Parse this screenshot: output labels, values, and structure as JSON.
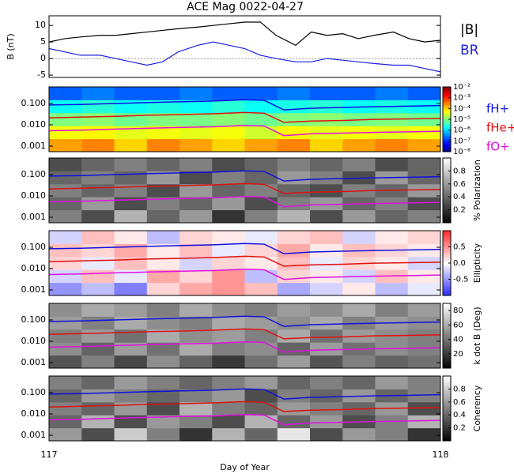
{
  "chart_data": [
    {
      "type": "line",
      "title": "ACE Mag 0022-04-27",
      "y_label": "B (nT)",
      "x": [
        117,
        117.04,
        117.08,
        117.13,
        117.17,
        117.21,
        117.25,
        117.29,
        117.33,
        117.38,
        117.42,
        117.46,
        117.5,
        117.54,
        117.58,
        117.63,
        117.67,
        117.71,
        117.75,
        117.79,
        117.83,
        117.88,
        117.92,
        117.96,
        118
      ],
      "series": [
        {
          "name": "|B|",
          "color": "#000000",
          "values": [
            5,
            6,
            6.5,
            7,
            7,
            7.5,
            8,
            8.5,
            9,
            9.5,
            10,
            10.5,
            11,
            11,
            7,
            4,
            8,
            7,
            7.5,
            6,
            7,
            8,
            6,
            5,
            5.5
          ]
        },
        {
          "name": "BR",
          "color": "#1f1fe0",
          "values": [
            3,
            2,
            1,
            1,
            0,
            -1,
            -2,
            -1,
            2,
            4,
            5,
            4,
            3,
            1,
            0,
            -1,
            -1,
            0,
            -0.5,
            -1,
            -1.5,
            -2,
            -2,
            -3,
            -4
          ]
        }
      ],
      "xlim": [
        117,
        118
      ],
      "ylim": [
        -5.7,
        12.9
      ],
      "yticks": [
        -5,
        0,
        5,
        10
      ]
    },
    {
      "type": "heatmap",
      "colormap": "jet",
      "cscale": "log",
      "yscale": "log",
      "clim": [
        1e-08,
        0.01
      ],
      "cticks": [
        {
          "value": 0.01,
          "label": "10⁻²"
        },
        {
          "value": 0.001,
          "label": "10⁻³"
        },
        {
          "value": 0.0001,
          "label": "10⁻⁴"
        },
        {
          "value": 1e-05,
          "label": "10⁻⁵"
        },
        {
          "value": 1e-06,
          "label": "10⁻⁶"
        },
        {
          "value": 1e-07,
          "label": "10⁻⁷"
        },
        {
          "value": 1e-08,
          "label": "10⁻⁸"
        }
      ],
      "xlim": [
        117,
        118
      ],
      "ylim": [
        0.00055,
        0.6
      ],
      "yticks": [
        {
          "value": 0.001,
          "label": "0.001"
        },
        {
          "value": 0.01,
          "label": "0.010"
        },
        {
          "value": 0.1,
          "label": "0.100"
        }
      ],
      "z": [
        [
          0.0002,
          0.0003,
          0.0001,
          0.0003,
          0.0002,
          0.0001,
          0.0002,
          0.0003,
          0.0001,
          0.0002,
          0.0003,
          0.0002
        ],
        [
          5e-05,
          6e-05,
          4e-05,
          5e-05,
          4e-05,
          5e-05,
          3e-05,
          6e-05,
          4e-05,
          5e-05,
          4e-05,
          5e-05
        ],
        [
          1e-05,
          1.2e-05,
          8e-06,
          1e-05,
          9e-06,
          1.1e-05,
          8e-06,
          1e-05,
          1.2e-05,
          9e-06,
          1e-05,
          8e-06
        ],
        [
          2e-06,
          3e-06,
          2e-06,
          2.5e-06,
          2e-06,
          3e-06,
          2e-06,
          2.5e-06,
          3e-06,
          2e-06,
          2.5e-06,
          2e-06
        ],
        [
          2e-07,
          3e-07,
          2e-07,
          2e-07,
          3e-07,
          2e-07,
          2e-07,
          3e-07,
          2e-07,
          2e-07,
          3e-07,
          2e-07
        ]
      ],
      "line_x": [
        117,
        117.08,
        117.17,
        117.25,
        117.33,
        117.42,
        117.5,
        117.55,
        117.6,
        117.67,
        117.75,
        117.83,
        117.92,
        118
      ],
      "series": [
        {
          "name": "fH+",
          "color": "#1010e0",
          "values": [
            0.085,
            0.09,
            0.1,
            0.11,
            0.12,
            0.13,
            0.15,
            0.14,
            0.05,
            0.06,
            0.065,
            0.07,
            0.075,
            0.08
          ]
        },
        {
          "name": "fHe+",
          "color": "#e01010",
          "values": [
            0.021,
            0.023,
            0.025,
            0.028,
            0.03,
            0.033,
            0.038,
            0.035,
            0.013,
            0.015,
            0.016,
            0.018,
            0.019,
            0.02
          ]
        },
        {
          "name": "fO+",
          "color": "#e010e0",
          "values": [
            0.0053,
            0.0056,
            0.0063,
            0.0069,
            0.0075,
            0.0081,
            0.0094,
            0.0088,
            0.0031,
            0.0038,
            0.0041,
            0.0044,
            0.0047,
            0.005
          ]
        }
      ]
    },
    {
      "type": "heatmap",
      "colormap": "gray",
      "yscale": "log",
      "c_label": "% Polarization",
      "clim": [
        0,
        1
      ],
      "cticks": [
        0.2,
        0.4,
        0.6,
        0.8
      ],
      "xlim": [
        117,
        118
      ],
      "ylim": [
        0.00055,
        0.6
      ],
      "yticks": [
        {
          "value": 0.001,
          "label": "0.001"
        },
        {
          "value": 0.01,
          "label": "0.010"
        },
        {
          "value": 0.1,
          "label": "0.100"
        }
      ],
      "z": [
        [
          0.5,
          0.3,
          0.7,
          0.4,
          0.6,
          0.2,
          0.5,
          0.7,
          0.3,
          0.6,
          0.4,
          0.5
        ],
        [
          0.4,
          0.6,
          0.3,
          0.5,
          0.4,
          0.6,
          0.3,
          0.5,
          0.6,
          0.4,
          0.5,
          0.3
        ],
        [
          0.5,
          0.4,
          0.5,
          0.3,
          0.6,
          0.4,
          0.5,
          0.4,
          0.3,
          0.5,
          0.4,
          0.6
        ],
        [
          0.4,
          0.5,
          0.4,
          0.6,
          0.3,
          0.5,
          0.4,
          0.6,
          0.5,
          0.3,
          0.6,
          0.4
        ],
        [
          0.3,
          0.4,
          0.5,
          0.4,
          0.5,
          0.3,
          0.4,
          0.5,
          0.4,
          0.5,
          0.3,
          0.4
        ]
      ],
      "line_x": [
        117,
        117.08,
        117.17,
        117.25,
        117.33,
        117.42,
        117.5,
        117.55,
        117.6,
        117.67,
        117.75,
        117.83,
        117.92,
        118
      ],
      "series": [
        {
          "color": "#1010e0",
          "values": [
            0.085,
            0.09,
            0.1,
            0.11,
            0.12,
            0.13,
            0.15,
            0.14,
            0.05,
            0.06,
            0.065,
            0.07,
            0.075,
            0.08
          ]
        },
        {
          "color": "#e01010",
          "values": [
            0.021,
            0.023,
            0.025,
            0.028,
            0.03,
            0.033,
            0.038,
            0.035,
            0.013,
            0.015,
            0.016,
            0.018,
            0.019,
            0.02
          ]
        },
        {
          "color": "#e010e0",
          "values": [
            0.0053,
            0.0056,
            0.0063,
            0.0069,
            0.0075,
            0.0081,
            0.0094,
            0.0088,
            0.0031,
            0.0038,
            0.0041,
            0.0044,
            0.0047,
            0.005
          ]
        }
      ]
    },
    {
      "type": "heatmap",
      "colormap": "bwr",
      "yscale": "log",
      "c_label": "Ellipticity",
      "clim": [
        -1,
        1
      ],
      "cticks": [
        -0.5,
        {
          "value": 0,
          "label": "0.0"
        },
        0.5
      ],
      "xlim": [
        117,
        118
      ],
      "ylim": [
        0.00055,
        0.6
      ],
      "yticks": [
        {
          "value": 0.001,
          "label": "0.001"
        },
        {
          "value": 0.01,
          "label": "0.010"
        },
        {
          "value": 0.1,
          "label": "0.100"
        }
      ],
      "z": [
        [
          -0.5,
          -0.3,
          -0.6,
          0.2,
          0.4,
          0.5,
          0.3,
          -0.4,
          -0.2,
          0.1,
          -0.3,
          -0.1
        ],
        [
          -0.2,
          0.3,
          -0.1,
          0.4,
          0.2,
          0.5,
          -0.3,
          0.2,
          0.1,
          -0.2,
          0.3,
          0.1
        ],
        [
          0.2,
          -0.1,
          0.3,
          0.1,
          -0.2,
          0.2,
          0.1,
          0.3,
          -0.1,
          0.2,
          0.1,
          -0.2
        ],
        [
          0.3,
          0.2,
          0.4,
          0.1,
          0.3,
          -0.1,
          0.2,
          0.4,
          0.1,
          0.3,
          0.2,
          0.1
        ],
        [
          -0.2,
          0.3,
          0.1,
          -0.3,
          0.2,
          0.1,
          -0.1,
          0.2,
          0.3,
          -0.2,
          0.1,
          0.2
        ]
      ],
      "line_x": [
        117,
        117.08,
        117.17,
        117.25,
        117.33,
        117.42,
        117.5,
        117.55,
        117.6,
        117.67,
        117.75,
        117.83,
        117.92,
        118
      ],
      "series": [
        {
          "color": "#1010e0",
          "values": [
            0.085,
            0.09,
            0.1,
            0.11,
            0.12,
            0.13,
            0.15,
            0.14,
            0.05,
            0.06,
            0.065,
            0.07,
            0.075,
            0.08
          ]
        },
        {
          "color": "#e01010",
          "values": [
            0.021,
            0.023,
            0.025,
            0.028,
            0.03,
            0.033,
            0.038,
            0.035,
            0.013,
            0.015,
            0.016,
            0.018,
            0.019,
            0.02
          ]
        },
        {
          "color": "#e010e0",
          "values": [
            0.0053,
            0.0056,
            0.0063,
            0.0069,
            0.0075,
            0.0081,
            0.0094,
            0.0088,
            0.0031,
            0.0038,
            0.0041,
            0.0044,
            0.0047,
            0.005
          ]
        }
      ]
    },
    {
      "type": "heatmap",
      "colormap": "gray",
      "yscale": "log",
      "c_label": "k dot B (Deg)",
      "clim": [
        0,
        90
      ],
      "cticks": [
        20,
        40,
        60,
        80
      ],
      "xlim": [
        117,
        118
      ],
      "ylim": [
        0.00055,
        0.6
      ],
      "yticks": [
        {
          "value": 0.001,
          "label": "0.001"
        },
        {
          "value": 0.01,
          "label": "0.010"
        },
        {
          "value": 0.1,
          "label": "0.100"
        }
      ],
      "z": [
        [
          30,
          45,
          25,
          50,
          35,
          20,
          40,
          55,
          30,
          45,
          35,
          40
        ],
        [
          50,
          35,
          55,
          40,
          60,
          45,
          50,
          35,
          55,
          40,
          50,
          45
        ],
        [
          45,
          55,
          40,
          60,
          50,
          55,
          45,
          60,
          40,
          55,
          50,
          45
        ],
        [
          55,
          45,
          60,
          50,
          45,
          60,
          55,
          50,
          60,
          45,
          55,
          50
        ],
        [
          50,
          60,
          55,
          45,
          60,
          50,
          45,
          55,
          50,
          60,
          45,
          55
        ]
      ],
      "line_x": [
        117,
        117.08,
        117.17,
        117.25,
        117.33,
        117.42,
        117.5,
        117.55,
        117.6,
        117.67,
        117.75,
        117.83,
        117.92,
        118
      ],
      "series": [
        {
          "color": "#1010e0",
          "values": [
            0.085,
            0.09,
            0.1,
            0.11,
            0.12,
            0.13,
            0.15,
            0.14,
            0.05,
            0.06,
            0.065,
            0.07,
            0.075,
            0.08
          ]
        },
        {
          "color": "#e01010",
          "values": [
            0.021,
            0.023,
            0.025,
            0.028,
            0.03,
            0.033,
            0.038,
            0.035,
            0.013,
            0.015,
            0.016,
            0.018,
            0.019,
            0.02
          ]
        },
        {
          "color": "#e010e0",
          "values": [
            0.0053,
            0.0056,
            0.0063,
            0.0069,
            0.0075,
            0.0081,
            0.0094,
            0.0088,
            0.0031,
            0.0038,
            0.0041,
            0.0044,
            0.0047,
            0.005
          ]
        }
      ]
    },
    {
      "type": "heatmap",
      "colormap": "gray",
      "yscale": "log",
      "c_label": "Coherency",
      "clim": [
        0,
        1
      ],
      "cticks": [
        0.2,
        0.4,
        0.6,
        0.8
      ],
      "xlim": [
        117,
        118
      ],
      "ylim": [
        0.00055,
        0.6
      ],
      "xticks": [
        117,
        118
      ],
      "x_label": "Day of Year",
      "yticks": [
        {
          "value": 0.001,
          "label": "0.001"
        },
        {
          "value": 0.01,
          "label": "0.010"
        },
        {
          "value": 0.1,
          "label": "0.100"
        }
      ],
      "z": [
        [
          0.6,
          0.3,
          0.8,
          0.5,
          0.2,
          0.7,
          0.4,
          0.9,
          0.3,
          0.6,
          0.5,
          0.2
        ],
        [
          0.4,
          0.7,
          0.3,
          0.6,
          0.5,
          0.3,
          0.7,
          0.4,
          0.6,
          0.3,
          0.5,
          0.7
        ],
        [
          0.5,
          0.4,
          0.6,
          0.3,
          0.7,
          0.5,
          0.4,
          0.6,
          0.5,
          0.4,
          0.6,
          0.3
        ],
        [
          0.4,
          0.6,
          0.5,
          0.4,
          0.5,
          0.6,
          0.3,
          0.5,
          0.4,
          0.6,
          0.4,
          0.5
        ],
        [
          0.5,
          0.4,
          0.6,
          0.5,
          0.4,
          0.5,
          0.6,
          0.4,
          0.5,
          0.4,
          0.6,
          0.5
        ]
      ],
      "line_x": [
        117,
        117.08,
        117.17,
        117.25,
        117.33,
        117.42,
        117.5,
        117.55,
        117.6,
        117.67,
        117.75,
        117.83,
        117.92,
        118
      ],
      "series": [
        {
          "color": "#1010e0",
          "values": [
            0.085,
            0.09,
            0.1,
            0.11,
            0.12,
            0.13,
            0.15,
            0.14,
            0.05,
            0.06,
            0.065,
            0.07,
            0.075,
            0.08
          ]
        },
        {
          "color": "#e01010",
          "values": [
            0.021,
            0.023,
            0.025,
            0.028,
            0.03,
            0.033,
            0.038,
            0.035,
            0.013,
            0.015,
            0.016,
            0.018,
            0.019,
            0.02
          ]
        },
        {
          "color": "#e010e0",
          "values": [
            0.0053,
            0.0056,
            0.0063,
            0.0069,
            0.0075,
            0.0081,
            0.0094,
            0.0088,
            0.0031,
            0.0038,
            0.0041,
            0.0044,
            0.0047,
            0.005
          ]
        }
      ]
    }
  ]
}
